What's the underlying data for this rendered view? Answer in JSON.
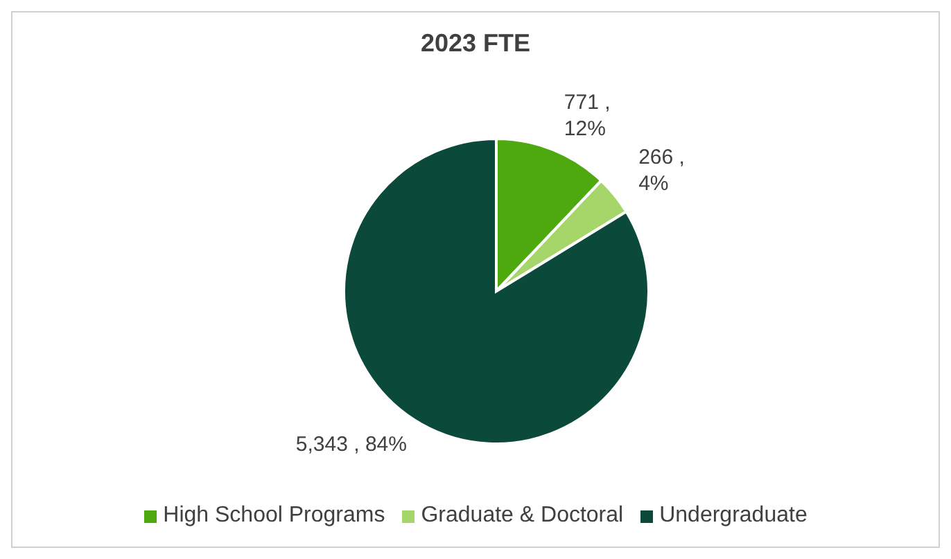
{
  "chart_data": {
    "type": "pie",
    "title": "2023 FTE",
    "categories": [
      "High School Programs",
      "Graduate & Doctoral",
      "Undergraduate"
    ],
    "values": [
      771,
      266,
      5343
    ],
    "colors": [
      "#4ea90f",
      "#a6d66a",
      "#0b4a3a"
    ],
    "value_labels": [
      "771 , 12%",
      "266 , 4%",
      "5,343 , 84%"
    ],
    "legend": "bottom"
  }
}
